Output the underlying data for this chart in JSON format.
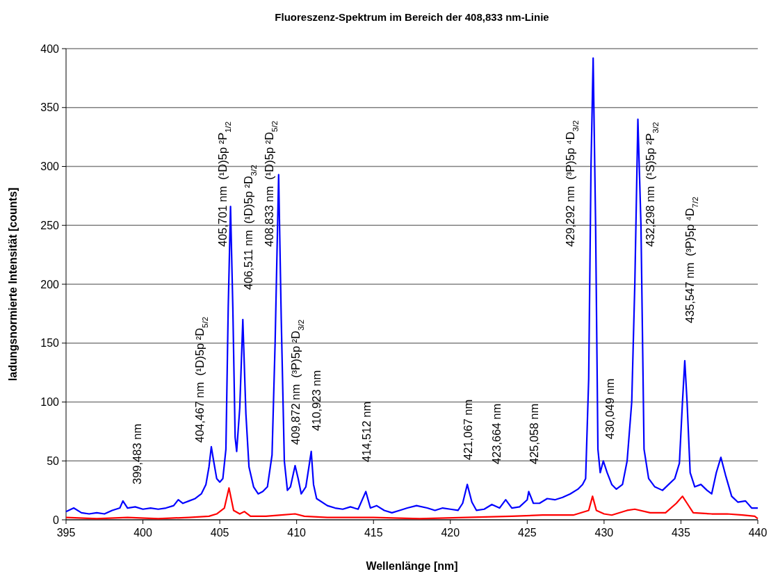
{
  "chart_data": {
    "type": "line",
    "title": "Fluoreszenz-Spektrum im Bereich der 408,833 nm-Linie",
    "xlabel": "Wellenlänge [nm]",
    "ylabel": "ladungsnormierte Intensität [counts]",
    "xlim": [
      395,
      440
    ],
    "xticks": [
      395,
      400,
      405,
      410,
      415,
      420,
      425,
      430,
      435,
      440
    ],
    "ylim": [
      0,
      400
    ],
    "yticks": [
      0,
      50,
      100,
      150,
      200,
      250,
      300,
      350,
      400
    ],
    "grid": "y",
    "marker": "none",
    "line_style": "solid",
    "series": [
      {
        "color": "#0000ff",
        "x": [
          395,
          395.5,
          396,
          396.5,
          397,
          397.5,
          398,
          398.5,
          398.7,
          399,
          399.5,
          400,
          400.5,
          401,
          401.5,
          402,
          402.3,
          402.6,
          403,
          403.4,
          403.8,
          404.1,
          404.3,
          404.45,
          404.6,
          404.8,
          405,
          405.2,
          405.4,
          405.55,
          405.7,
          405.85,
          406,
          406.1,
          406.3,
          406.5,
          406.7,
          406.9,
          407.2,
          407.5,
          407.8,
          408.1,
          408.4,
          408.6,
          408.83,
          409,
          409.2,
          409.4,
          409.6,
          409.9,
          410.1,
          410.3,
          410.6,
          410.8,
          410.95,
          411.1,
          411.3,
          412,
          412.5,
          413,
          413.5,
          414,
          414.5,
          414.8,
          415.2,
          415.7,
          416.2,
          416.7,
          417.2,
          417.8,
          418.5,
          419,
          419.5,
          420,
          420.5,
          420.8,
          421.1,
          421.4,
          421.7,
          422.2,
          422.7,
          423.2,
          423.6,
          424,
          424.5,
          425,
          425.1,
          425.4,
          425.8,
          426.3,
          426.8,
          427.3,
          427.8,
          428.3,
          428.6,
          428.8,
          429,
          429.15,
          429.29,
          429.45,
          429.6,
          429.75,
          429.95,
          430.2,
          430.5,
          430.8,
          431.2,
          431.5,
          431.8,
          432,
          432.2,
          432.4,
          432.6,
          432.9,
          433.3,
          433.8,
          434.2,
          434.6,
          434.9,
          435.1,
          435.25,
          435.4,
          435.6,
          435.9,
          436.3,
          436.7,
          437,
          437.3,
          437.6,
          437.9,
          438.3,
          438.7,
          439.2,
          439.6,
          440
        ],
        "values": [
          7,
          10,
          6,
          5,
          6,
          5,
          8,
          10,
          16,
          10,
          11,
          9,
          10,
          9,
          10,
          12,
          17,
          14,
          16,
          18,
          22,
          30,
          45,
          62,
          50,
          35,
          32,
          35,
          60,
          180,
          266,
          180,
          70,
          58,
          95,
          170,
          90,
          45,
          28,
          22,
          24,
          28,
          55,
          150,
          293,
          170,
          50,
          25,
          28,
          46,
          35,
          22,
          28,
          45,
          58,
          30,
          18,
          12,
          10,
          9,
          11,
          9,
          24,
          10,
          12,
          8,
          6,
          8,
          10,
          12,
          10,
          8,
          10,
          9,
          8,
          14,
          30,
          15,
          8,
          9,
          13,
          10,
          17,
          10,
          11,
          17,
          24,
          14,
          14,
          18,
          17,
          19,
          22,
          26,
          30,
          35,
          120,
          300,
          392,
          250,
          60,
          40,
          50,
          40,
          30,
          26,
          30,
          50,
          100,
          200,
          340,
          250,
          60,
          35,
          28,
          25,
          30,
          35,
          48,
          100,
          135,
          100,
          40,
          28,
          30,
          25,
          22,
          40,
          53,
          38,
          20,
          15,
          16,
          10,
          10
        ]
      },
      {
        "color": "#ff0000",
        "x": [
          395,
          397,
          399,
          401,
          403,
          404.3,
          404.8,
          405.3,
          405.6,
          405.9,
          406.3,
          406.6,
          407,
          408,
          409,
          409.9,
          410.5,
          412,
          415,
          418,
          421,
          424,
          426,
          428,
          429,
          429.25,
          429.5,
          430,
          430.5,
          431.5,
          432,
          433,
          434,
          434.7,
          435.1,
          435.4,
          435.8,
          437,
          438,
          439,
          439.8,
          440
        ],
        "values": [
          2,
          1,
          2,
          1,
          2,
          3,
          5,
          10,
          27,
          8,
          5,
          7,
          3,
          3,
          4,
          5,
          3,
          2,
          2,
          1,
          2,
          3,
          4,
          4,
          8,
          20,
          8,
          5,
          4,
          8,
          9,
          6,
          6,
          14,
          20,
          14,
          6,
          5,
          5,
          4,
          3,
          1
        ]
      }
    ],
    "annotations": [
      "399,483 nm",
      "404,467 nm  (¹D)5p ²D$_{5/2}$",
      "405,701 nm  (¹D)5p ²P$_{1/2}$",
      "406,511 nm  (¹D)5p ²D$_{3/2}$",
      "408,833 nm  (¹D)5p ²D$_{5/2}$",
      "409,872 nm  (³P)5p ²D$_{3/2}$",
      "410,923 nm",
      "414,512 nm",
      "421,067 nm",
      "423,664 nm",
      "425,058 nm",
      "429,292 nm  (³P)5p ⁴D$_{3/2}$",
      "430,049 nm",
      "432,298 nm  (¹S)5p ²P$_{3/2}$",
      "435,547 nm  (³P)5p ⁴D$_{7/2}$"
    ]
  }
}
